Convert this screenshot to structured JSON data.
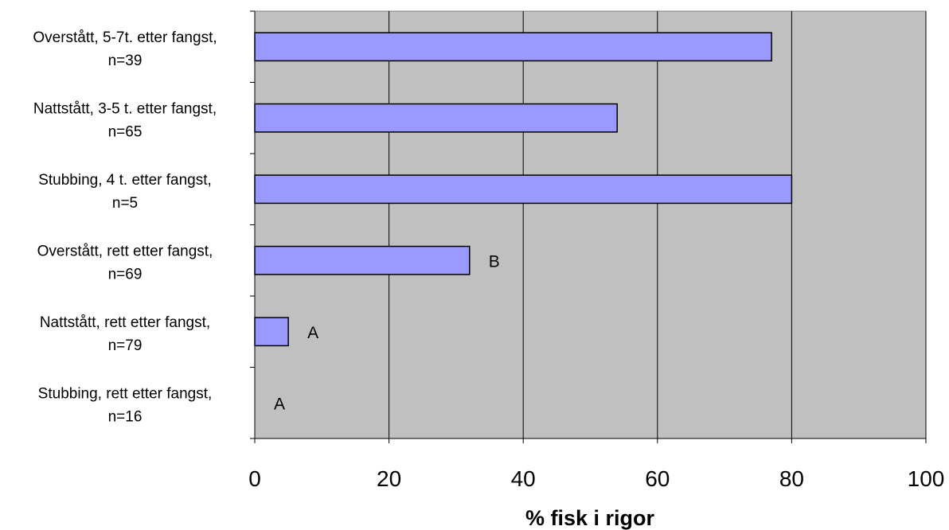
{
  "chart_data": {
    "type": "bar",
    "orientation": "horizontal",
    "categories": [
      [
        "Overstått, 5-7t. etter fangst,",
        "n=39"
      ],
      [
        "Nattstått, 3-5 t. etter fangst,",
        "n=65"
      ],
      [
        "Stubbing, 4 t. etter fangst,",
        "n=5"
      ],
      [
        "Overstått, rett etter fangst,",
        "n=69"
      ],
      [
        "Nattstått, rett etter fangst,",
        "n=79"
      ],
      [
        "Stubbing, rett etter fangst,",
        "n=16"
      ]
    ],
    "values": [
      77,
      54,
      80,
      32,
      5,
      0
    ],
    "annotations": [
      "",
      "",
      "",
      "B",
      "A",
      "A"
    ],
    "xlabel": "% fisk i rigor",
    "xlim": [
      0,
      100
    ],
    "xticks": [
      "0",
      "20",
      "40",
      "60",
      "80",
      "100"
    ],
    "grid": "vertical",
    "colors": {
      "bar_fill": "#9999ff",
      "bar_stroke": "#000000",
      "plot_bg": "#c0c0c0",
      "gridline": "#000000"
    }
  }
}
